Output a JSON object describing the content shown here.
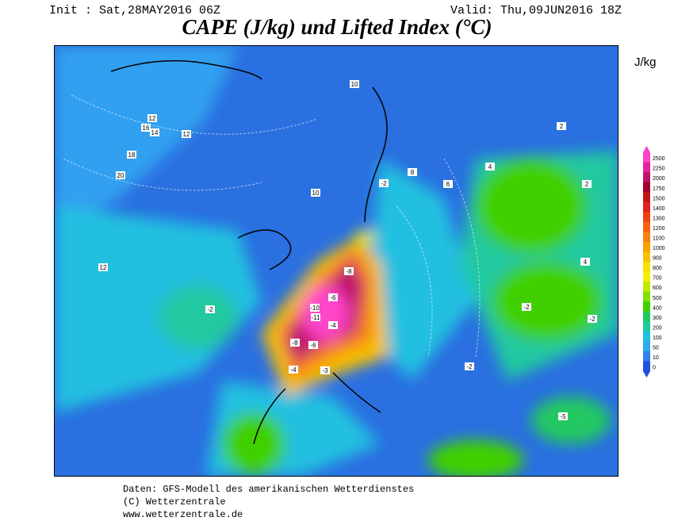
{
  "header": {
    "init": "Init : Sat,28MAY2016 06Z",
    "valid": "Valid: Thu,09JUN2016 18Z",
    "title": "CAPE (J/kg) und Lifted Index (°C)"
  },
  "colorbar": {
    "unit": "J/kg",
    "levels": [
      {
        "label": "2500",
        "color": "#ff44c8"
      },
      {
        "label": "2250",
        "color": "#e8209e"
      },
      {
        "label": "2000",
        "color": "#c0106e"
      },
      {
        "label": "1750",
        "color": "#a00030"
      },
      {
        "label": "1500",
        "color": "#c01818"
      },
      {
        "label": "1400",
        "color": "#e02020"
      },
      {
        "label": "1300",
        "color": "#f04010"
      },
      {
        "label": "1200",
        "color": "#f86010"
      },
      {
        "label": "1100",
        "color": "#f88010"
      },
      {
        "label": "1000",
        "color": "#f8a000"
      },
      {
        "label": "900",
        "color": "#f8c000"
      },
      {
        "label": "800",
        "color": "#f8e000"
      },
      {
        "label": "700",
        "color": "#f0f000"
      },
      {
        "label": "600",
        "color": "#c0e800"
      },
      {
        "label": "500",
        "color": "#80e000"
      },
      {
        "label": "400",
        "color": "#40d000"
      },
      {
        "label": "300",
        "color": "#20c860"
      },
      {
        "label": "200",
        "color": "#20c8a0"
      },
      {
        "label": "100",
        "color": "#20c0e0"
      },
      {
        "label": "50",
        "color": "#30a8f0"
      },
      {
        "label": "10",
        "color": "#3080f0"
      },
      {
        "label": "0",
        "color": "#2050e0"
      }
    ]
  },
  "map": {
    "contour_labels": [
      "12",
      "14",
      "16",
      "18",
      "20",
      "12",
      "10",
      "8",
      "6",
      "4",
      "2",
      "-2",
      "-4",
      "-6",
      "-8",
      "-10",
      "-11",
      "-8",
      "-6",
      "-4",
      "-2",
      "2",
      "4",
      "-2",
      "-3",
      "-2",
      "-5",
      "-2",
      "10",
      "12"
    ]
  },
  "footer": {
    "line1": "Daten: GFS-Modell des amerikanischen Wetterdienstes",
    "line2": "(C) Wetterzentrale",
    "line3": "www.wetterzentrale.de"
  }
}
